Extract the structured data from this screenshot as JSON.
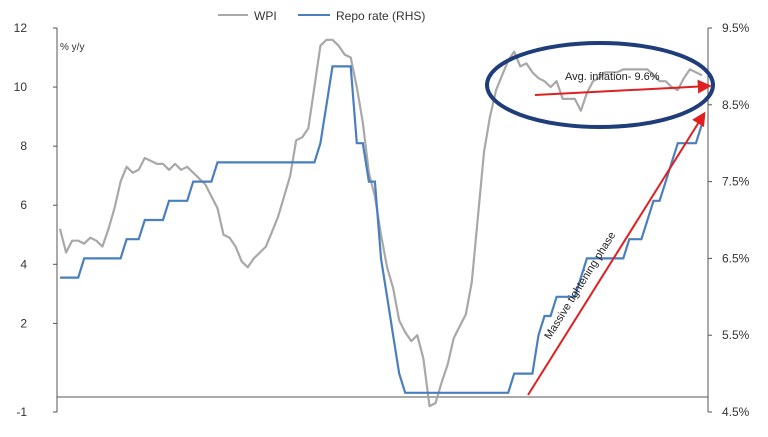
{
  "chart_data": {
    "type": "line",
    "title": "",
    "xlabel": "",
    "ylabel": "% y/y",
    "ylim": [
      -1,
      12
    ],
    "y2lim": [
      4.5,
      9.5
    ],
    "yticks": [
      -1,
      2,
      4,
      6,
      8,
      10,
      12
    ],
    "y2ticks": [
      "4.5%",
      "5.5%",
      "6.5%",
      "7.5%",
      "8.5%",
      "9.5%"
    ],
    "y2values": [
      4.5,
      5.5,
      6.5,
      7.5,
      8.5,
      9.5
    ],
    "grid": false,
    "legend_position": "top-center",
    "colors": {
      "wpi": "#a8a8a8",
      "repo": "#4a7fbf",
      "annotation": "#e02020",
      "ellipse": "#1f3d7a",
      "axis": "#555555"
    },
    "n_points": 107,
    "series": [
      {
        "name": "WPI",
        "axis": "left",
        "values": [
          5.2,
          4.4,
          4.8,
          4.8,
          4.7,
          4.9,
          4.8,
          4.6,
          5.2,
          5.9,
          6.8,
          7.3,
          7.1,
          7.2,
          7.6,
          7.5,
          7.4,
          7.4,
          7.2,
          7.4,
          7.2,
          7.3,
          7.1,
          6.9,
          6.7,
          6.3,
          5.9,
          5.0,
          4.9,
          4.6,
          4.1,
          3.9,
          4.2,
          4.4,
          4.6,
          5.1,
          5.6,
          6.3,
          7.0,
          8.2,
          8.3,
          8.6,
          10.0,
          11.4,
          11.6,
          11.6,
          11.4,
          11.1,
          11.0,
          10.0,
          8.8,
          7.1,
          6.3,
          5.0,
          3.9,
          3.2,
          2.1,
          1.7,
          1.4,
          1.6,
          0.8,
          -0.8,
          -0.7,
          0.0,
          0.6,
          1.5,
          1.9,
          2.3,
          3.4,
          5.6,
          7.8,
          9.0,
          9.9,
          10.4,
          10.9,
          11.2,
          10.7,
          10.8,
          10.5,
          10.3,
          10.2,
          10.0,
          10.2,
          9.6,
          9.6,
          9.6,
          9.2,
          9.8,
          10.2,
          10.3,
          10.5,
          10.5,
          10.5,
          10.6,
          10.6,
          10.6,
          10.6,
          10.6,
          10.4,
          10.2,
          10.2,
          10.0,
          9.9,
          10.3,
          10.6,
          10.5,
          10.4
        ]
      },
      {
        "name": "Repo rate (RHS)",
        "axis": "right",
        "values": [
          6.25,
          6.25,
          6.25,
          6.25,
          6.5,
          6.5,
          6.5,
          6.5,
          6.5,
          6.5,
          6.5,
          6.75,
          6.75,
          6.75,
          7.0,
          7.0,
          7.0,
          7.0,
          7.25,
          7.25,
          7.25,
          7.25,
          7.5,
          7.5,
          7.5,
          7.5,
          7.75,
          7.75,
          7.75,
          7.75,
          7.75,
          7.75,
          7.75,
          7.75,
          7.75,
          7.75,
          7.75,
          7.75,
          7.75,
          7.75,
          7.75,
          7.75,
          7.75,
          8.0,
          8.5,
          9.0,
          9.0,
          9.0,
          9.0,
          8.0,
          8.0,
          7.5,
          7.5,
          6.5,
          6.0,
          5.5,
          5.0,
          4.75,
          4.75,
          4.75,
          4.75,
          4.75,
          4.75,
          4.75,
          4.75,
          4.75,
          4.75,
          4.75,
          4.75,
          4.75,
          4.75,
          4.75,
          4.75,
          4.75,
          4.75,
          5.0,
          5.0,
          5.0,
          5.0,
          5.5,
          5.75,
          5.75,
          6.0,
          6.0,
          6.0,
          6.0,
          6.25,
          6.5,
          6.5,
          6.5,
          6.5,
          6.5,
          6.5,
          6.5,
          6.75,
          6.75,
          6.75,
          7.0,
          7.25,
          7.25,
          7.5,
          7.75,
          8.0,
          8.0,
          8.0,
          8.0,
          8.25
        ]
      }
    ],
    "annotations": {
      "ellipse_label": "Avg. inflation- 9.6%",
      "arrow_label": "Massive tightening phase"
    }
  }
}
